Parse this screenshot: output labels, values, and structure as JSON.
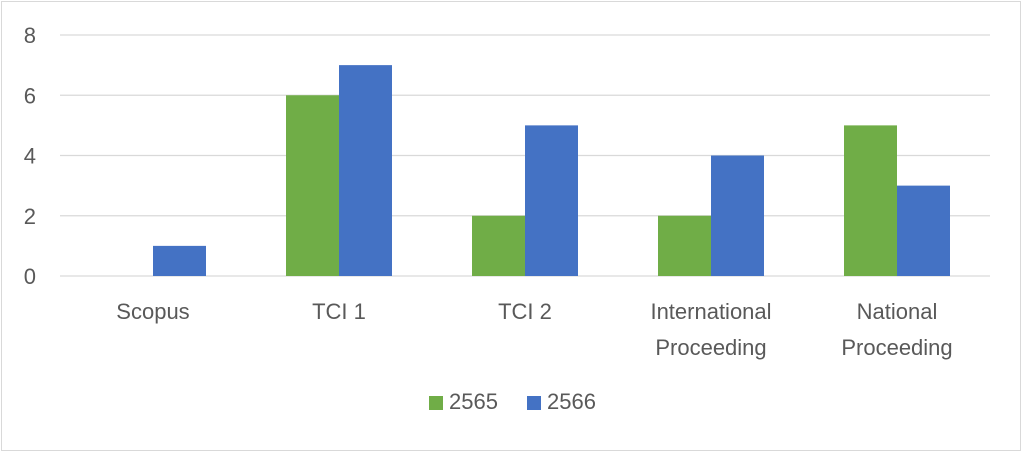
{
  "chart_data": {
    "type": "bar",
    "categories": [
      [
        "Scopus"
      ],
      [
        "TCI 1"
      ],
      [
        "TCI 2"
      ],
      [
        "International",
        "Proceeding"
      ],
      [
        "National",
        "Proceeding"
      ]
    ],
    "series": [
      {
        "name": "2565",
        "values": [
          0,
          6,
          2,
          2,
          5
        ],
        "color": "#70ad47"
      },
      {
        "name": "2566",
        "values": [
          1,
          7,
          5,
          4,
          3
        ],
        "color": "#4472c4"
      }
    ],
    "ylim": [
      0,
      8
    ],
    "yticks": [
      0,
      2,
      4,
      6,
      8
    ],
    "grid": true,
    "legend": "bottom",
    "title": "",
    "xlabel": "",
    "ylabel": ""
  }
}
